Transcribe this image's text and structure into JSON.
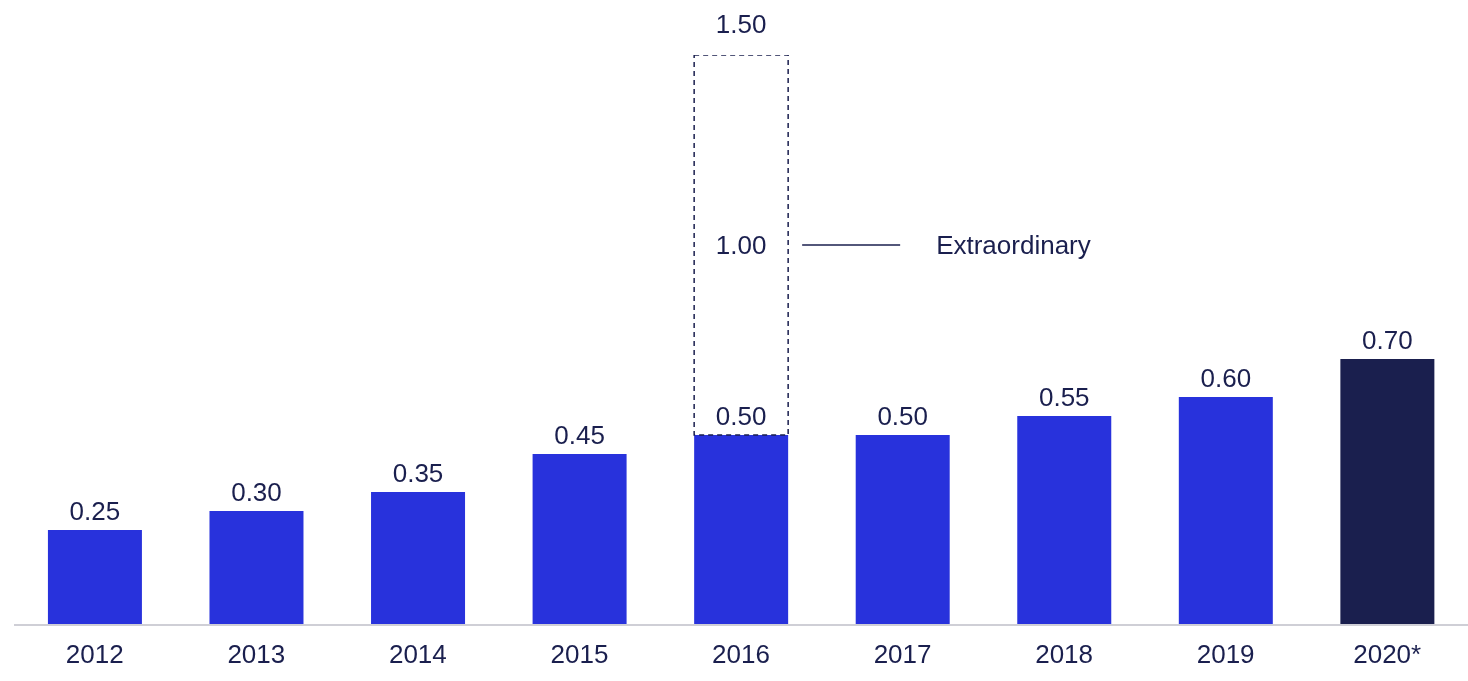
{
  "chart_data": {
    "type": "bar",
    "stacked": true,
    "legend": "top",
    "tick_labels": "x",
    "categories": [
      "2012",
      "2013",
      "2014",
      "2015",
      "2016",
      "2017",
      "2018",
      "2019",
      "2020*"
    ],
    "series": [
      {
        "colors": [
          "#2832dc",
          "#2832dc",
          "#2832dc",
          "#2832dc",
          "#2832dc",
          "#2832dc",
          "#2832dc",
          "#2832dc",
          "#1a1f4e"
        ],
        "values": [
          0.25,
          0.3,
          0.35,
          0.45,
          0.5,
          0.5,
          0.55,
          0.6,
          0.7
        ],
        "value_labels": [
          "0.25",
          "0.30",
          "0.35",
          "0.45",
          "0.50",
          "0.50",
          "0.55",
          "0.60",
          "0.70"
        ]
      },
      {
        "name": "Extraordinary",
        "color": "#1a1f4e",
        "line_style": "dashed",
        "values": [
          null,
          null,
          null,
          null,
          1.0,
          null,
          null,
          null,
          null
        ],
        "value_labels": [
          null,
          null,
          null,
          null,
          "1.00",
          null,
          null,
          null,
          null
        ]
      }
    ],
    "totals": [
      null,
      null,
      null,
      null,
      "1.50",
      null,
      null,
      null,
      null
    ]
  }
}
